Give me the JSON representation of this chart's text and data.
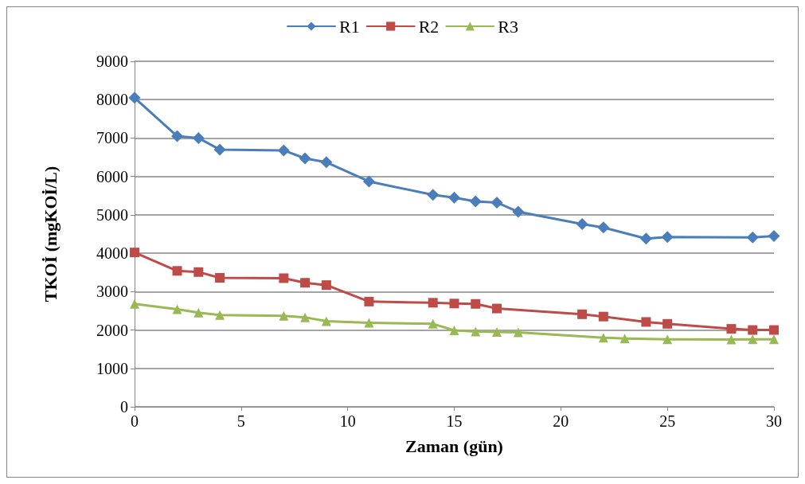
{
  "chart_data": {
    "type": "line",
    "xlabel": "Zaman (gün)",
    "ylabel": "TKOİ (mgKOİ/L)",
    "xlim": [
      0,
      30
    ],
    "xticks": [
      0,
      5,
      10,
      15,
      20,
      25,
      30
    ],
    "ylim": [
      0,
      9000
    ],
    "yticks": [
      0,
      1000,
      2000,
      3000,
      4000,
      5000,
      6000,
      7000,
      8000,
      9000
    ],
    "grid": "y",
    "legend": "top",
    "series": [
      {
        "name": "R1",
        "color": "#4a7ebb",
        "marker": "diamond",
        "x": [
          0,
          2,
          3,
          4,
          7,
          8,
          9,
          11,
          14,
          15,
          16,
          17,
          18,
          21,
          22,
          24,
          25,
          29,
          30
        ],
        "values": [
          8050,
          7050,
          7000,
          6700,
          6680,
          6470,
          6370,
          5870,
          5520,
          5450,
          5350,
          5320,
          5080,
          4760,
          4670,
          4380,
          4420,
          4410,
          4450
        ]
      },
      {
        "name": "R2",
        "color": "#be4b48",
        "marker": "square",
        "x": [
          0,
          2,
          3,
          4,
          7,
          8,
          9,
          11,
          14,
          15,
          16,
          17,
          21,
          22,
          24,
          25,
          28,
          29,
          30
        ],
        "values": [
          4020,
          3540,
          3510,
          3360,
          3350,
          3230,
          3170,
          2740,
          2710,
          2690,
          2680,
          2560,
          2410,
          2350,
          2210,
          2160,
          2030,
          2000,
          2000
        ]
      },
      {
        "name": "R3",
        "color": "#98b954",
        "marker": "triangle",
        "x": [
          0,
          2,
          3,
          4,
          7,
          8,
          9,
          11,
          14,
          15,
          16,
          17,
          18,
          22,
          23,
          25,
          28,
          29,
          30
        ],
        "values": [
          2680,
          2540,
          2450,
          2390,
          2370,
          2330,
          2230,
          2190,
          2160,
          1990,
          1960,
          1950,
          1940,
          1800,
          1780,
          1760,
          1750,
          1760,
          1760
        ]
      }
    ]
  }
}
